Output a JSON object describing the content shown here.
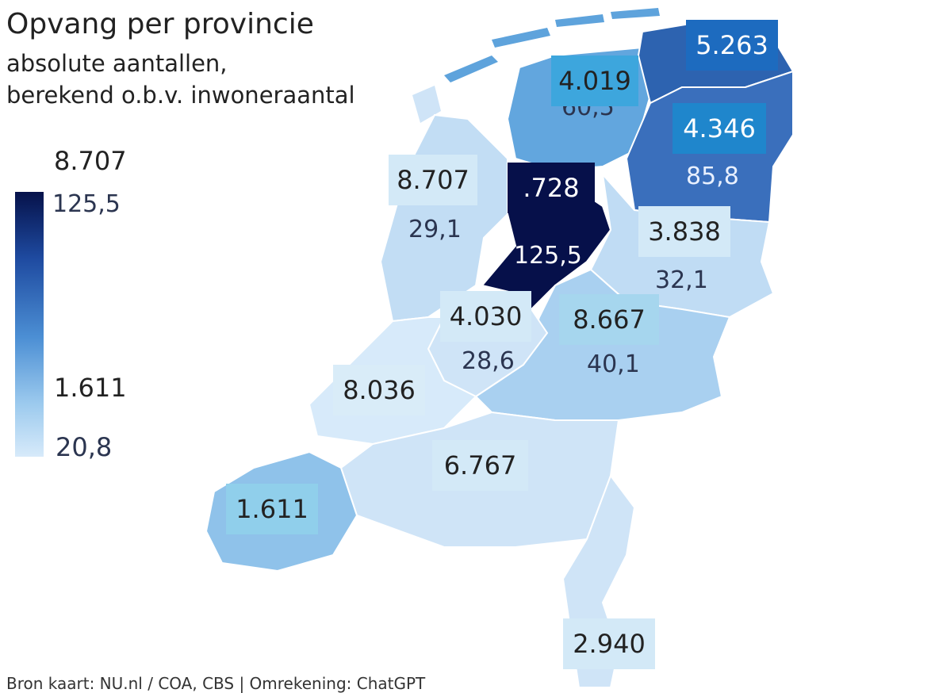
{
  "title": "Opvang per provincie",
  "subtitle_line1": "absolute aantallen,",
  "subtitle_line2": "berekend o.b.v. inwoneraantal",
  "legend": {
    "max": "8.707",
    "mid": "1.611",
    "min": "20,8",
    "top_ghost": "125,5"
  },
  "provinces": {
    "groningen": {
      "value": "5.263",
      "underlying": ""
    },
    "friesland": {
      "value": "4.019",
      "underlying": "60,5"
    },
    "drenthe": {
      "value": "4.346",
      "underlying": "85,8"
    },
    "noord_holland": {
      "value": "8.707",
      "underlying": "29,1"
    },
    "flevoland": {
      "value": ".728",
      "underlying": "125,5"
    },
    "overijssel": {
      "value": "3.838",
      "underlying": "32,1"
    },
    "utrecht": {
      "value": "4.030",
      "underlying": "28,6"
    },
    "gelderland": {
      "value": "8.667",
      "underlying": "40,1"
    },
    "zuid_holland": {
      "value": "8.036",
      "underlying": ""
    },
    "noord_brabant": {
      "value": "6.767",
      "underlying": ""
    },
    "zeeland": {
      "value": "1.611",
      "underlying": ""
    },
    "limburg": {
      "value": "2.940",
      "underlying": ""
    }
  },
  "source_note": "Bron kaart: NU.nl / COA, CBS | Omrekening: ChatGPT",
  "colors": {
    "darkest": "#06104a",
    "dark": "#2d63b0",
    "mid": "#5ea3dc",
    "light": "#bfdcf5",
    "lightest": "#d7eafa",
    "water": "#ffffff"
  }
}
